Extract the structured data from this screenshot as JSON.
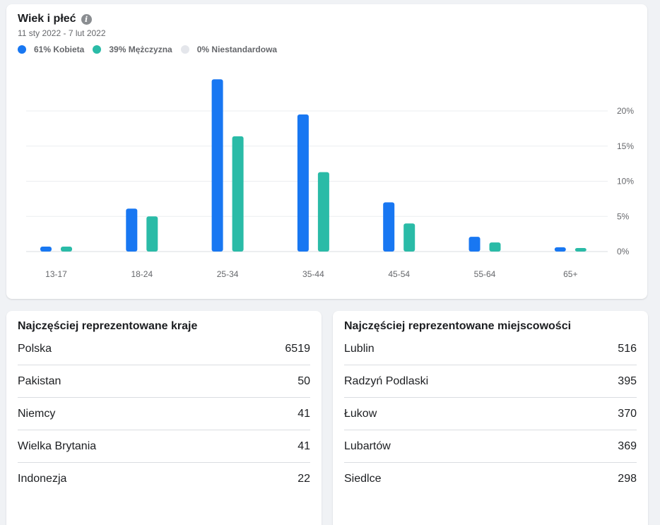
{
  "header": {
    "title": "Wiek i płeć",
    "info_icon": "info-icon",
    "date_range": "11 sty 2022 - 7 lut 2022"
  },
  "legend": [
    {
      "label": "61% Kobieta",
      "color": "#1877f2"
    },
    {
      "label": "39% Mężczyzna",
      "color": "#2abba7"
    },
    {
      "label": "0% Niestandardowa",
      "color": "#e4e6eb"
    }
  ],
  "chart_data": {
    "type": "bar",
    "categories": [
      "13-17",
      "18-24",
      "25-34",
      "35-44",
      "45-54",
      "55-64",
      "65+"
    ],
    "series": [
      {
        "name": "61% Kobieta",
        "color": "#1877f2",
        "values": [
          0.7,
          6.1,
          24.5,
          19.5,
          7.0,
          2.1,
          0.6
        ]
      },
      {
        "name": "39% Mężczyzna",
        "color": "#2abba7",
        "values": [
          0.7,
          5.0,
          16.4,
          11.3,
          4.0,
          1.3,
          0.5
        ]
      }
    ],
    "y_ticks": [
      "0%",
      "5%",
      "10%",
      "15%",
      "20%"
    ],
    "ylim": [
      0,
      25
    ],
    "y_axis_position": "right",
    "grid": true,
    "title": "",
    "xlabel": "",
    "ylabel": ""
  },
  "countries": {
    "title": "Najczęściej reprezentowane kraje",
    "rows": [
      {
        "name": "Polska",
        "value": "6519"
      },
      {
        "name": "Pakistan",
        "value": "50"
      },
      {
        "name": "Niemcy",
        "value": "41"
      },
      {
        "name": "Wielka Brytania",
        "value": "41"
      },
      {
        "name": "Indonezja",
        "value": "22"
      }
    ]
  },
  "cities": {
    "title": "Najczęściej reprezentowane miejscowości",
    "rows": [
      {
        "name": "Lublin",
        "value": "516"
      },
      {
        "name": "Radzyń Podlaski",
        "value": "395"
      },
      {
        "name": "Łukow",
        "value": "370"
      },
      {
        "name": "Lubartów",
        "value": "369"
      },
      {
        "name": "Siedlce",
        "value": "298"
      }
    ]
  }
}
